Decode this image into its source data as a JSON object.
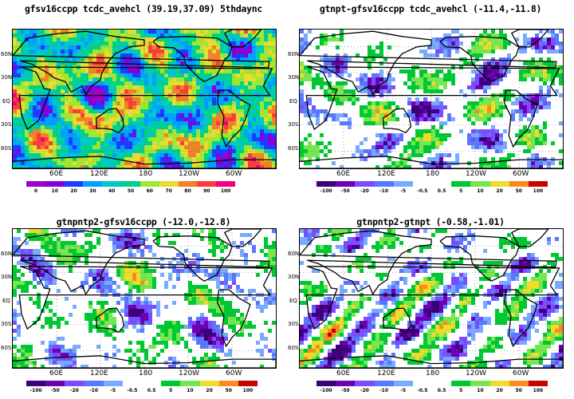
{
  "panels": [
    {
      "id": "p1",
      "title": "gfsv16ccpp  tcdc_avehcl (39.19,37.09) 5thdaync",
      "palette": "absolute",
      "colorbar_labels": [
        "0",
        "10",
        "20",
        "30",
        "40",
        "50",
        "60",
        "70",
        "80",
        "90",
        "100"
      ]
    },
    {
      "id": "p2",
      "title": "gtnpt-gfsv16ccpp  tcdc_avehcl (-11.4,-11.8)",
      "palette": "diff",
      "colorbar_labels": [
        "-100",
        "-50",
        "-20",
        "-10",
        "-5",
        "-0.5",
        "0.5",
        "5",
        "10",
        "20",
        "50",
        "100"
      ]
    },
    {
      "id": "p3",
      "title": "gtnpntp2-gfsv16ccpp  (-12.0,-12.8)",
      "palette": "diff",
      "colorbar_labels": [
        "-100",
        "-50",
        "-20",
        "-10",
        "-5",
        "-0.5",
        "0.5",
        "5",
        "10",
        "20",
        "50",
        "100"
      ]
    },
    {
      "id": "p4",
      "title": "gtnpntp2-gtnpt  (-0.58,-1.01)",
      "palette": "diff",
      "colorbar_labels": [
        "-100",
        "-50",
        "-20",
        "-10",
        "-5",
        "-0.5",
        "0.5",
        "5",
        "10",
        "20",
        "50",
        "100"
      ]
    }
  ],
  "lat_labels": [
    "60N",
    "30N",
    "EQ",
    "30S",
    "60S"
  ],
  "lon_labels": [
    "60E",
    "120E",
    "180",
    "120W",
    "60W"
  ],
  "colors": {
    "absolute": [
      "#a000c8",
      "#8200dc",
      "#1e3cff",
      "#00a0ff",
      "#00c8c8",
      "#00d28c",
      "#a0e632",
      "#e6dc32",
      "#f08228",
      "#fa3c3c",
      "#f00082"
    ],
    "diff": [
      "#3c0078",
      "#6e00b4",
      "#7d4bff",
      "#5a78ff",
      "#78aaff",
      "#ffffff",
      "#ffffff",
      "#00c832",
      "#78e650",
      "#f0dc28",
      "#fa8c1e",
      "#c80000"
    ]
  }
}
